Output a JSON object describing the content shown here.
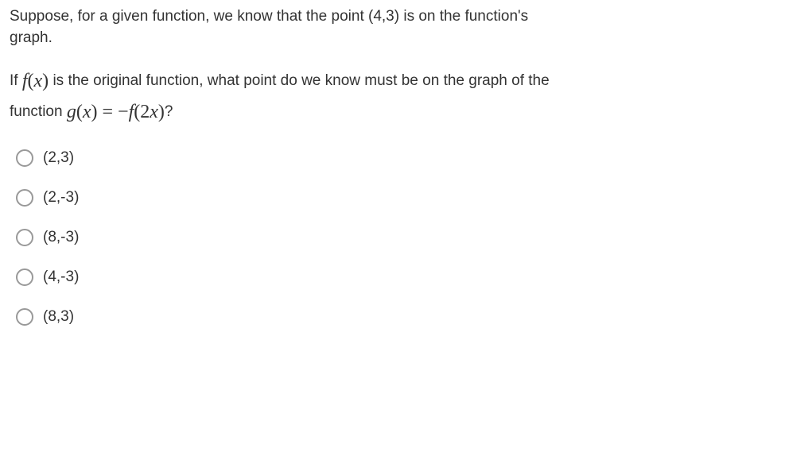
{
  "question": {
    "intro_line1": "Suppose, for a given function, we know that the point (4,3) is on the function's",
    "intro_line2": "graph.",
    "part2_prefix": "If ",
    "fx": "f(x)",
    "part2_mid": " is the original function, what point do we know must be on the graph of the",
    "part2_line2_a": "function ",
    "gx": "g(x)",
    "equals": " = ",
    "neg": "−",
    "f2x": "f(2x)",
    "qmark": "?"
  },
  "options": [
    {
      "label": "(2,3)"
    },
    {
      "label": "(2,-3)"
    },
    {
      "label": "(8,-3)"
    },
    {
      "label": "(4,-3)"
    },
    {
      "label": "(8,3)"
    }
  ],
  "colors": {
    "text": "#333333",
    "radio_border": "#999999",
    "background": "#ffffff"
  },
  "typography": {
    "body_fontsize": 19,
    "math_fontsize": 24
  }
}
